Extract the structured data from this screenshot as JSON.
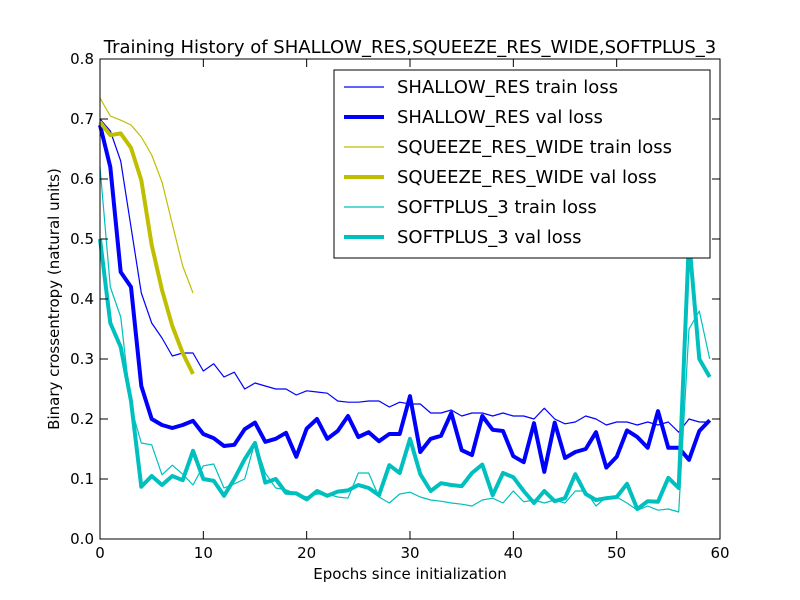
{
  "chart_data": {
    "type": "line",
    "title": "Training History of SHALLOW_RES,SQUEEZE_RES_WIDE,SOFTPLUS_3",
    "xlabel": "Epochs since initialization",
    "ylabel": "Binary crossentropy (natural units)",
    "xlim": [
      0,
      60
    ],
    "ylim": [
      0.0,
      0.8
    ],
    "xticks": [
      "0",
      "10",
      "20",
      "30",
      "40",
      "50",
      "60"
    ],
    "yticks": [
      "0.0",
      "0.1",
      "0.2",
      "0.3",
      "0.4",
      "0.5",
      "0.6",
      "0.7",
      "0.8"
    ],
    "grid": false,
    "legend_position": "top-right",
    "series": [
      {
        "name": "SHALLOW_RES train loss",
        "color": "#0000ff",
        "style": "thin",
        "x": [
          0,
          1,
          2,
          3,
          4,
          5,
          6,
          7,
          8,
          9,
          10,
          11,
          12,
          13,
          14,
          15,
          16,
          17,
          18,
          19,
          20,
          21,
          22,
          23,
          24,
          25,
          26,
          27,
          28,
          29,
          30,
          31,
          32,
          33,
          34,
          35,
          36,
          37,
          38,
          39,
          40,
          41,
          42,
          43,
          44,
          45,
          46,
          47,
          48,
          49,
          50,
          51,
          52,
          53,
          54,
          55,
          56,
          57,
          58,
          59
        ],
        "values": [
          0.7,
          0.68,
          0.63,
          0.52,
          0.41,
          0.36,
          0.335,
          0.305,
          0.31,
          0.31,
          0.28,
          0.292,
          0.27,
          0.278,
          0.25,
          0.26,
          0.255,
          0.25,
          0.25,
          0.24,
          0.247,
          0.245,
          0.243,
          0.23,
          0.228,
          0.228,
          0.23,
          0.23,
          0.22,
          0.228,
          0.225,
          0.225,
          0.21,
          0.21,
          0.215,
          0.205,
          0.21,
          0.21,
          0.205,
          0.21,
          0.205,
          0.205,
          0.2,
          0.218,
          0.2,
          0.192,
          0.195,
          0.205,
          0.2,
          0.19,
          0.195,
          0.195,
          0.19,
          0.195,
          0.19,
          0.195,
          0.178,
          0.2,
          0.195,
          0.195
        ]
      },
      {
        "name": "SHALLOW_RES val loss",
        "color": "#0000ff",
        "style": "thick",
        "x": [
          0,
          1,
          2,
          3,
          4,
          5,
          6,
          7,
          8,
          9,
          10,
          11,
          12,
          13,
          14,
          15,
          16,
          17,
          18,
          19,
          20,
          21,
          22,
          23,
          24,
          25,
          26,
          27,
          28,
          29,
          30,
          31,
          32,
          33,
          34,
          35,
          36,
          37,
          38,
          39,
          40,
          41,
          42,
          43,
          44,
          45,
          46,
          47,
          48,
          49,
          50,
          51,
          52,
          53,
          54,
          55,
          56,
          57,
          58,
          59
        ],
        "values": [
          0.69,
          0.62,
          0.445,
          0.42,
          0.255,
          0.2,
          0.19,
          0.185,
          0.19,
          0.197,
          0.175,
          0.168,
          0.155,
          0.157,
          0.183,
          0.194,
          0.162,
          0.167,
          0.177,
          0.137,
          0.184,
          0.2,
          0.167,
          0.18,
          0.205,
          0.17,
          0.178,
          0.163,
          0.175,
          0.175,
          0.238,
          0.145,
          0.167,
          0.172,
          0.21,
          0.148,
          0.14,
          0.205,
          0.182,
          0.18,
          0.138,
          0.128,
          0.193,
          0.112,
          0.194,
          0.135,
          0.145,
          0.15,
          0.178,
          0.119,
          0.137,
          0.181,
          0.17,
          0.152,
          0.213,
          0.152,
          0.152,
          0.132,
          0.18,
          0.198
        ]
      },
      {
        "name": "SQUEEZE_RES_WIDE train loss",
        "color": "#bfbf00",
        "style": "thin",
        "x": [
          0,
          1,
          2,
          3,
          4,
          5,
          6,
          7,
          8,
          9
        ],
        "values": [
          0.735,
          0.705,
          0.698,
          0.69,
          0.67,
          0.64,
          0.595,
          0.525,
          0.455,
          0.41
        ]
      },
      {
        "name": "SQUEEZE_RES_WIDE val loss",
        "color": "#bfbf00",
        "style": "thick",
        "x": [
          0,
          1,
          2,
          3,
          4,
          5,
          6,
          7,
          8,
          9
        ],
        "values": [
          0.695,
          0.673,
          0.676,
          0.652,
          0.598,
          0.49,
          0.415,
          0.355,
          0.31,
          0.275
        ]
      },
      {
        "name": "SOFTPLUS_3 train loss",
        "color": "#00bfbf",
        "style": "thin",
        "x": [
          0,
          1,
          2,
          3,
          4,
          5,
          6,
          7,
          8,
          9,
          10,
          11,
          12,
          13,
          14,
          15,
          16,
          17,
          18,
          19,
          20,
          21,
          22,
          23,
          24,
          25,
          26,
          27,
          28,
          29,
          30,
          31,
          32,
          33,
          34,
          35,
          36,
          37,
          38,
          39,
          40,
          41,
          42,
          43,
          44,
          45,
          46,
          47,
          48,
          49,
          50,
          51,
          52,
          53,
          54,
          55,
          56,
          57,
          58,
          59
        ],
        "values": [
          0.62,
          0.42,
          0.37,
          0.22,
          0.16,
          0.157,
          0.107,
          0.123,
          0.108,
          0.09,
          0.122,
          0.125,
          0.085,
          0.092,
          0.1,
          0.162,
          0.11,
          0.085,
          0.082,
          0.075,
          0.07,
          0.075,
          0.075,
          0.07,
          0.068,
          0.11,
          0.11,
          0.07,
          0.06,
          0.075,
          0.078,
          0.07,
          0.065,
          0.063,
          0.06,
          0.058,
          0.055,
          0.065,
          0.068,
          0.06,
          0.08,
          0.062,
          0.065,
          0.06,
          0.065,
          0.06,
          0.08,
          0.08,
          0.055,
          0.07,
          0.07,
          0.06,
          0.048,
          0.055,
          0.048,
          0.05,
          0.045,
          0.35,
          0.38,
          0.3
        ]
      },
      {
        "name": "SOFTPLUS_3 val loss",
        "color": "#00bfbf",
        "style": "thick",
        "x": [
          0,
          1,
          2,
          3,
          4,
          5,
          6,
          7,
          8,
          9,
          10,
          11,
          12,
          13,
          14,
          15,
          16,
          17,
          18,
          19,
          20,
          21,
          22,
          23,
          24,
          25,
          26,
          27,
          28,
          29,
          30,
          31,
          32,
          33,
          34,
          35,
          36,
          37,
          38,
          39,
          40,
          41,
          42,
          43,
          44,
          45,
          46,
          47,
          48,
          49,
          50,
          51,
          52,
          53,
          54,
          55,
          56,
          57,
          58,
          59
        ],
        "values": [
          0.5,
          0.36,
          0.32,
          0.23,
          0.087,
          0.105,
          0.09,
          0.105,
          0.098,
          0.147,
          0.1,
          0.097,
          0.072,
          0.1,
          0.133,
          0.16,
          0.094,
          0.1,
          0.077,
          0.076,
          0.066,
          0.08,
          0.072,
          0.079,
          0.081,
          0.09,
          0.085,
          0.073,
          0.123,
          0.11,
          0.167,
          0.108,
          0.08,
          0.093,
          0.09,
          0.088,
          0.11,
          0.124,
          0.073,
          0.11,
          0.103,
          0.08,
          0.06,
          0.08,
          0.063,
          0.068,
          0.108,
          0.075,
          0.065,
          0.068,
          0.07,
          0.092,
          0.05,
          0.063,
          0.062,
          0.102,
          0.085,
          0.5,
          0.3,
          0.27
        ]
      }
    ]
  }
}
